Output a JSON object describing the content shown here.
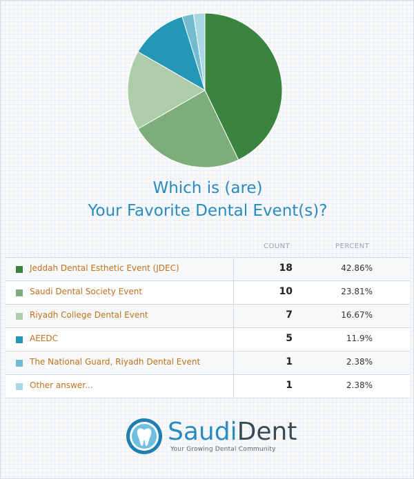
{
  "chart_data": {
    "type": "pie",
    "title_lines": [
      "Which is (are)",
      "Your Favorite Dental Event(s)?"
    ],
    "column_headers": {
      "count": "COUNT",
      "percent": "PERCENT"
    },
    "series": [
      {
        "name": "Jeddah Dental Esthetic Event (JDEC)",
        "count": "18",
        "percent": "42.86%",
        "value": 18,
        "color": "#3a8440"
      },
      {
        "name": "Saudi Dental Society Event",
        "count": "10",
        "percent": "23.81%",
        "value": 10,
        "color": "#7ead7c"
      },
      {
        "name": "Riyadh College Dental Event",
        "count": "7",
        "percent": "16.67%",
        "value": 7,
        "color": "#adcca9"
      },
      {
        "name": "AEEDC",
        "count": "5",
        "percent": "11.9%",
        "value": 5,
        "color": "#2496b7"
      },
      {
        "name": "The National Guard, Riyadh Dental Event",
        "count": "1",
        "percent": "2.38%",
        "value": 1,
        "color": "#72bbd1"
      },
      {
        "name": "Other answer...",
        "count": "1",
        "percent": "2.38%",
        "value": 1,
        "color": "#a9d7e4"
      }
    ]
  },
  "logo": {
    "name_part1": "Saudi",
    "name_part2": "Dent",
    "tagline": "Your Growing Dental Community"
  }
}
